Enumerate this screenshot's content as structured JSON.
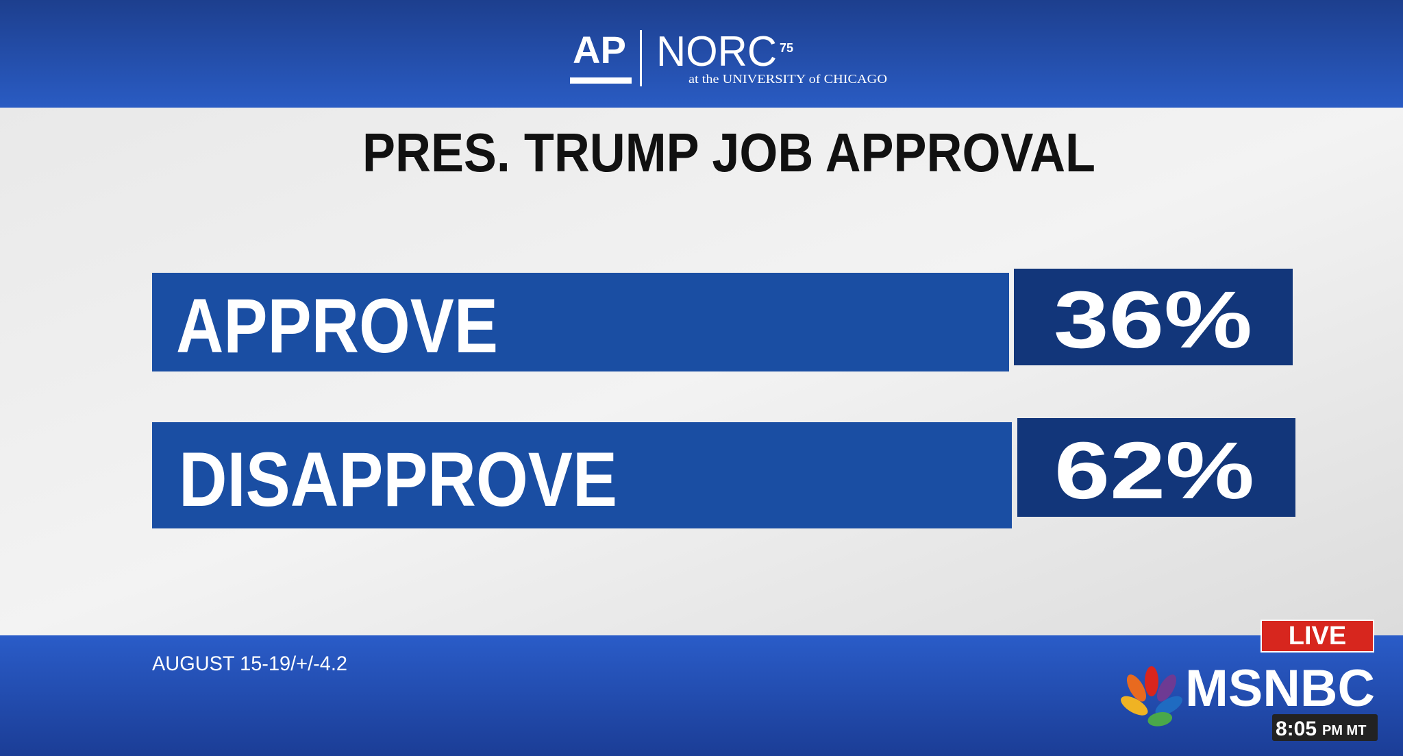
{
  "header": {
    "logo_ap": "AP",
    "logo_norc": "NORC",
    "logo_75": "75",
    "logo_sub": "at the UNIVERSITY of CHICAGO"
  },
  "title": "PRES. TRUMP JOB APPROVAL",
  "rows": [
    {
      "label": "APPROVE",
      "value": "36%"
    },
    {
      "label": "DISAPPROVE",
      "value": "62%"
    }
  ],
  "footer": {
    "note": "AUGUST 15-19/+/-4.2"
  },
  "bug": {
    "live": "LIVE",
    "network": "MSNBC",
    "time": "8:05",
    "time_suffix": "PM MT"
  }
}
